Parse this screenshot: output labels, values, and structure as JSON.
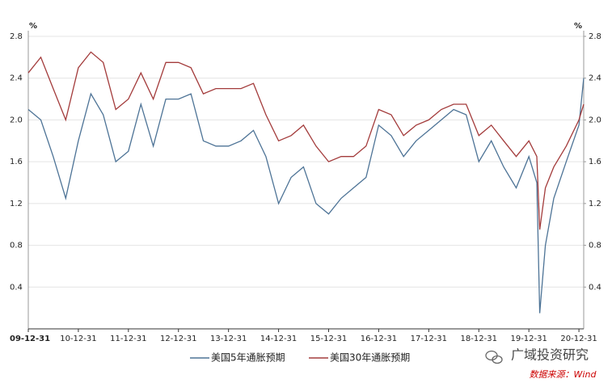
{
  "chart_data": {
    "type": "line",
    "unit_left": "%",
    "unit_right": "%",
    "x": [
      "09-12-31",
      "10-03-31",
      "10-06-30",
      "10-09-30",
      "10-12-31",
      "11-03-31",
      "11-06-30",
      "11-09-30",
      "11-12-31",
      "12-03-31",
      "12-06-30",
      "12-09-30",
      "12-12-31",
      "13-03-31",
      "13-06-30",
      "13-09-30",
      "13-12-31",
      "14-03-31",
      "14-06-30",
      "14-09-30",
      "14-12-31",
      "15-03-31",
      "15-06-30",
      "15-09-30",
      "15-12-31",
      "16-03-31",
      "16-06-30",
      "16-09-30",
      "16-12-31",
      "17-03-31",
      "17-06-30",
      "17-09-30",
      "17-12-31",
      "18-03-31",
      "18-06-30",
      "18-09-30",
      "18-12-31",
      "19-03-31",
      "19-06-30",
      "19-09-30",
      "19-12-31",
      "20-02-28",
      "20-03-19",
      "20-04-30",
      "20-06-30",
      "20-09-30",
      "20-12-31",
      "21-02-05"
    ],
    "series": [
      {
        "name": "美国5年通胀预期",
        "color": "#4d7396",
        "values": [
          2.1,
          2.0,
          1.65,
          1.25,
          1.8,
          2.25,
          2.05,
          1.6,
          1.7,
          2.15,
          1.75,
          2.2,
          2.2,
          2.25,
          1.8,
          1.75,
          1.75,
          1.8,
          1.9,
          1.65,
          1.2,
          1.45,
          1.55,
          1.2,
          1.1,
          1.25,
          1.35,
          1.45,
          1.95,
          1.85,
          1.65,
          1.8,
          1.9,
          2.0,
          2.1,
          2.05,
          1.6,
          1.8,
          1.55,
          1.35,
          1.65,
          1.4,
          0.15,
          0.8,
          1.25,
          1.6,
          1.95,
          2.4
        ]
      },
      {
        "name": "美国30年通胀预期",
        "color": "#a33b3b",
        "values": [
          2.45,
          2.6,
          2.3,
          2.0,
          2.5,
          2.65,
          2.55,
          2.1,
          2.2,
          2.45,
          2.2,
          2.55,
          2.55,
          2.5,
          2.25,
          2.3,
          2.3,
          2.3,
          2.35,
          2.05,
          1.8,
          1.85,
          1.95,
          1.75,
          1.6,
          1.65,
          1.65,
          1.75,
          2.1,
          2.05,
          1.85,
          1.95,
          2.0,
          2.1,
          2.15,
          2.15,
          1.85,
          1.95,
          1.8,
          1.65,
          1.8,
          1.65,
          0.95,
          1.35,
          1.55,
          1.75,
          2.0,
          2.15
        ]
      }
    ],
    "xlim": [
      "09-12-31",
      "21-02-05"
    ],
    "xticks": [
      "09-12-31",
      "10-12-31",
      "11-12-31",
      "12-12-31",
      "13-12-31",
      "14-12-31",
      "15-12-31",
      "16-12-31",
      "17-12-31",
      "18-12-31",
      "19-12-31",
      "20-12-31"
    ],
    "ylim": [
      0,
      2.8
    ],
    "yticks": [
      0.4,
      0.8,
      1.2,
      1.6,
      {
        "value": 2,
        "label": "2.0"
      },
      2.4,
      2.8
    ],
    "y2lim": [
      0,
      2.8
    ],
    "y2ticks": [
      0.4,
      0.8,
      1.2,
      1.6,
      {
        "value": 2,
        "label": "2.0"
      },
      2.4,
      2.8
    ],
    "grid": true,
    "watermark": "广域投资研究",
    "source": "数据来源：Wind"
  }
}
